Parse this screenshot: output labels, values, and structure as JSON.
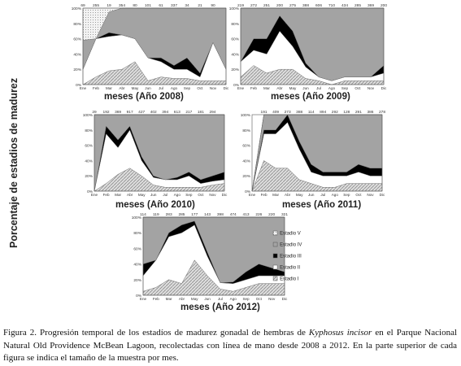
{
  "y_label": "Porcentaje de estadios de madurez",
  "caption": {
    "prefix": "Figura 2. Progresión temporal de los estadíos de madurez gonadal de hembras de",
    "species": "Kyphosus incisor",
    "suffix": "en el Parque Nacional Natural Old Providence McBean Lagoon, recolectadas con línea de mano desde 2008 a 2012. En la parte superior de cada figura se indica el tamaño de la muestra por mes."
  },
  "colors": {
    "estadio_I": "#cfcfcf",
    "estadio_II": "#ffffff",
    "estadio_III": "#000000",
    "estadio_IV": "#9a9a9a",
    "estadio_V": "#eeeeee"
  },
  "chart_data": [
    {
      "type": "area",
      "xlabel": "meses (Año 2008)",
      "categories": [
        "Ene",
        "Feb",
        "Mar",
        "Abr",
        "May",
        "Jun",
        "Jul",
        "Ago",
        "Sep",
        "Oct",
        "Nov",
        "Dic"
      ],
      "sample_sizes": [
        "69",
        "255",
        "19",
        "354",
        "80",
        "101",
        "61",
        "337",
        "34",
        "21",
        "90",
        ""
      ],
      "ylim": [
        0,
        100
      ],
      "series": [
        {
          "name": "Estadio I",
          "values": [
            0,
            10,
            18,
            20,
            30,
            5,
            10,
            8,
            8,
            5,
            5,
            5
          ]
        },
        {
          "name": "Estadio II",
          "values": [
            20,
            50,
            45,
            45,
            30,
            30,
            20,
            12,
            12,
            5,
            50,
            15
          ]
        },
        {
          "name": "Estadio III",
          "values": [
            0,
            0,
            5,
            0,
            0,
            0,
            5,
            5,
            15,
            5,
            0,
            0
          ]
        },
        {
          "name": "Estadio IV",
          "values": [
            38,
            0,
            27,
            35,
            40,
            65,
            65,
            75,
            65,
            85,
            45,
            80
          ]
        },
        {
          "name": "Estadio V",
          "values": [
            42,
            40,
            5,
            0,
            0,
            0,
            0,
            0,
            0,
            0,
            0,
            0
          ]
        }
      ]
    },
    {
      "type": "area",
      "xlabel": "meses (Año 2009)",
      "categories": [
        "Ene",
        "Feb",
        "Mar",
        "Abr",
        "May",
        "Jun",
        "Jul",
        "Ago",
        "Sep",
        "Oct",
        "Nov",
        "Dic"
      ],
      "sample_sizes": [
        "219",
        "272",
        "251",
        "200",
        "275",
        "388",
        "606",
        "710",
        "434",
        "285",
        "369",
        "200"
      ],
      "ylim": [
        0,
        100
      ],
      "series": [
        {
          "name": "Estadio I",
          "values": [
            10,
            25,
            15,
            20,
            20,
            8,
            5,
            0,
            5,
            5,
            5,
            5
          ]
        },
        {
          "name": "Estadio II",
          "values": [
            20,
            20,
            25,
            50,
            30,
            15,
            5,
            5,
            5,
            5,
            5,
            10
          ]
        },
        {
          "name": "Estadio III",
          "values": [
            0,
            15,
            20,
            20,
            20,
            5,
            0,
            0,
            0,
            0,
            0,
            10
          ]
        },
        {
          "name": "Estadio IV",
          "values": [
            70,
            40,
            40,
            10,
            30,
            72,
            90,
            95,
            90,
            90,
            90,
            75
          ]
        },
        {
          "name": "Estadio V",
          "values": [
            0,
            0,
            0,
            0,
            0,
            0,
            0,
            0,
            0,
            0,
            0,
            0
          ]
        }
      ]
    },
    {
      "type": "area",
      "xlabel": "meses (Año 2010)",
      "categories": [
        "Ene",
        "Feb",
        "Mar",
        "Abr",
        "May",
        "Jun",
        "Jul",
        "Ago",
        "Sep",
        "Oct",
        "Nov",
        "Dic"
      ],
      "sample_sizes": [
        "29",
        "192",
        "369",
        "917",
        "427",
        "402",
        "394",
        "613",
        "217",
        "181",
        "294",
        ""
      ],
      "ylim": [
        0,
        100
      ],
      "series": [
        {
          "name": "Estadio I",
          "values": [
            0,
            10,
            22,
            30,
            20,
            8,
            5,
            5,
            5,
            5,
            8,
            10
          ]
        },
        {
          "name": "Estadio II",
          "values": [
            0,
            65,
            35,
            50,
            20,
            10,
            10,
            10,
            15,
            5,
            5,
            5
          ]
        },
        {
          "name": "Estadio III",
          "values": [
            0,
            10,
            10,
            5,
            5,
            2,
            0,
            3,
            5,
            5,
            7,
            10
          ]
        },
        {
          "name": "Estadio IV",
          "values": [
            100,
            15,
            33,
            15,
            55,
            80,
            85,
            82,
            75,
            85,
            80,
            75
          ]
        },
        {
          "name": "Estadio V",
          "values": [
            0,
            0,
            0,
            0,
            0,
            0,
            0,
            0,
            0,
            0,
            0,
            0
          ]
        }
      ]
    },
    {
      "type": "area",
      "xlabel": "meses (Año 2011)",
      "categories": [
        "Ene",
        "Feb",
        "Mar",
        "Abr",
        "May",
        "Jun",
        "Jul",
        "Ago",
        "Sep",
        "Oct",
        "Nov",
        "Dic"
      ],
      "sample_sizes": [
        "",
        "191",
        "409",
        "273",
        "388",
        "114",
        "894",
        "292",
        "128",
        "291",
        "386",
        "278"
      ],
      "ylim": [
        0,
        100
      ],
      "series": [
        {
          "name": "Estadio I",
          "values": [
            0,
            40,
            30,
            30,
            15,
            10,
            5,
            5,
            10,
            10,
            10,
            10
          ]
        },
        {
          "name": "Estadio II",
          "values": [
            0,
            35,
            45,
            60,
            40,
            15,
            15,
            15,
            10,
            15,
            10,
            10
          ]
        },
        {
          "name": "Estadio III",
          "values": [
            0,
            5,
            5,
            10,
            10,
            10,
            5,
            5,
            5,
            10,
            10,
            10
          ]
        },
        {
          "name": "Estadio IV",
          "values": [
            0,
            20,
            20,
            0,
            35,
            65,
            75,
            75,
            75,
            65,
            70,
            70
          ]
        },
        {
          "name": "Estadio V",
          "values": [
            0,
            0,
            0,
            0,
            0,
            0,
            0,
            0,
            0,
            0,
            0,
            0
          ]
        }
      ]
    },
    {
      "type": "area",
      "xlabel": "meses (Año 2012)",
      "categories": [
        "Ene",
        "Feb",
        "Mar",
        "Abr",
        "May",
        "Jun",
        "Jul",
        "Ago",
        "Sep",
        "Oct",
        "Nov",
        "Dic"
      ],
      "sample_sizes": [
        "114",
        "119",
        "283",
        "285",
        "177",
        "143",
        "398",
        "474",
        "413",
        "226",
        "220",
        "321"
      ],
      "ylim": [
        0,
        100
      ],
      "legend": {
        "placement": "inside-right",
        "labels": [
          "Estadio V",
          "Estadio IV",
          "Estadio III",
          "Estadio II",
          "Estadio I"
        ]
      },
      "series": [
        {
          "name": "Estadio I",
          "values": [
            5,
            10,
            20,
            15,
            45,
            25,
            8,
            5,
            10,
            15,
            15,
            15
          ]
        },
        {
          "name": "Estadio II",
          "values": [
            20,
            35,
            55,
            65,
            45,
            25,
            8,
            10,
            10,
            10,
            10,
            10
          ]
        },
        {
          "name": "Estadio III",
          "values": [
            15,
            0,
            5,
            10,
            5,
            5,
            0,
            2,
            10,
            15,
            10,
            5
          ]
        },
        {
          "name": "Estadio IV",
          "values": [
            60,
            55,
            20,
            10,
            5,
            45,
            84,
            83,
            70,
            60,
            65,
            70
          ]
        },
        {
          "name": "Estadio V",
          "values": [
            0,
            0,
            0,
            0,
            0,
            0,
            0,
            0,
            0,
            0,
            0,
            0
          ]
        }
      ]
    }
  ]
}
